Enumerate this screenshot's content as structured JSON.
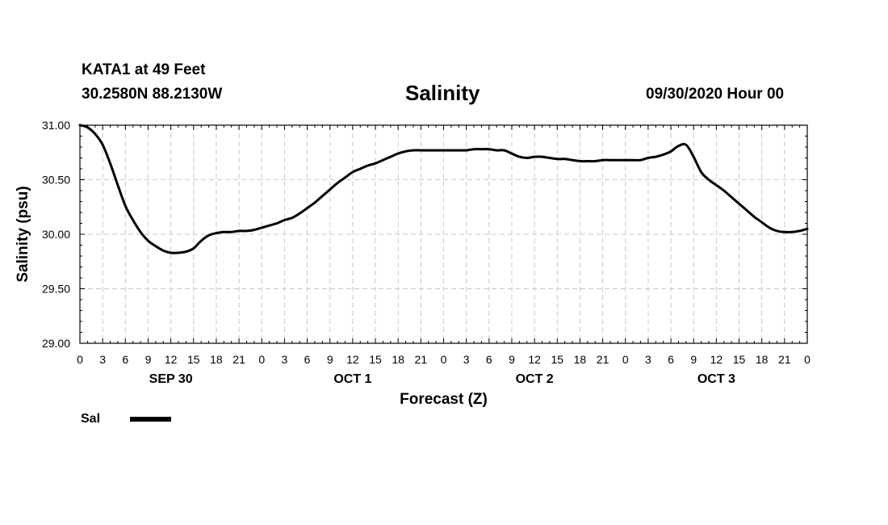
{
  "header": {
    "station": "KATA1 at 49 Feet",
    "coords": "30.2580N 88.2130W",
    "title": "Salinity",
    "valid": "09/30/2020 Hour 00"
  },
  "legend": {
    "label": "Sal"
  },
  "chart_data": {
    "type": "line",
    "title": "Salinity",
    "xlabel": "Forecast (Z)",
    "ylabel": "Salinity (psu)",
    "x_unit": "forecast hour",
    "xlim": [
      0,
      96
    ],
    "ylim": [
      29.0,
      31.0
    ],
    "yticks": [
      29.0,
      29.5,
      30.0,
      30.5,
      31.0
    ],
    "ytick_labels": [
      "29.00",
      "29.50",
      "30.00",
      "30.50",
      "31.00"
    ],
    "xtick_labels": [
      "0",
      "3",
      "6",
      "9",
      "12",
      "15",
      "18",
      "21",
      "0",
      "3",
      "6",
      "9",
      "12",
      "15",
      "18",
      "21",
      "0",
      "3",
      "6",
      "9",
      "12",
      "15",
      "18",
      "21",
      "0",
      "3",
      "6",
      "9",
      "12",
      "15",
      "18",
      "21",
      "0"
    ],
    "day_labels": [
      {
        "label": "SEP 30",
        "x": 12
      },
      {
        "label": "OCT 1",
        "x": 36
      },
      {
        "label": "OCT 2",
        "x": 60
      },
      {
        "label": "OCT 3",
        "x": 84
      }
    ],
    "grid": true,
    "legend_position": "bottom-left",
    "series": [
      {
        "name": "Sal",
        "color": "#000000",
        "x": [
          0,
          1,
          2,
          3,
          4,
          5,
          6,
          7,
          8,
          9,
          10,
          11,
          12,
          13,
          14,
          15,
          16,
          17,
          18,
          19,
          20,
          21,
          22,
          23,
          24,
          25,
          26,
          27,
          28,
          29,
          30,
          31,
          32,
          33,
          34,
          35,
          36,
          37,
          38,
          39,
          40,
          41,
          42,
          43,
          44,
          45,
          46,
          47,
          48,
          49,
          50,
          51,
          52,
          53,
          54,
          55,
          56,
          57,
          58,
          59,
          60,
          61,
          62,
          63,
          64,
          65,
          66,
          67,
          68,
          69,
          70,
          71,
          72,
          73,
          74,
          75,
          76,
          77,
          78,
          79,
          80,
          81,
          82,
          83,
          84,
          85,
          86,
          87,
          88,
          89,
          90,
          91,
          92,
          93,
          94,
          95,
          96
        ],
        "values": [
          31.0,
          30.98,
          30.92,
          30.82,
          30.65,
          30.45,
          30.26,
          30.13,
          30.02,
          29.94,
          29.89,
          29.85,
          29.83,
          29.83,
          29.84,
          29.87,
          29.94,
          29.99,
          30.01,
          30.02,
          30.02,
          30.03,
          30.03,
          30.04,
          30.06,
          30.08,
          30.1,
          30.13,
          30.15,
          30.19,
          30.24,
          30.29,
          30.35,
          30.41,
          30.47,
          30.52,
          30.57,
          30.6,
          30.63,
          30.65,
          30.68,
          30.71,
          30.74,
          30.76,
          30.77,
          30.77,
          30.77,
          30.77,
          30.77,
          30.77,
          30.77,
          30.77,
          30.78,
          30.78,
          30.78,
          30.77,
          30.77,
          30.74,
          30.71,
          30.7,
          30.71,
          30.71,
          30.7,
          30.69,
          30.69,
          30.68,
          30.67,
          30.67,
          30.67,
          30.68,
          30.68,
          30.68,
          30.68,
          30.68,
          30.68,
          30.7,
          30.71,
          30.73,
          30.76,
          30.81,
          30.82,
          30.71,
          30.57,
          30.5,
          30.45,
          30.4,
          30.34,
          30.28,
          30.22,
          30.16,
          30.11,
          30.06,
          30.03,
          30.02,
          30.02,
          30.03,
          30.05
        ]
      }
    ]
  }
}
